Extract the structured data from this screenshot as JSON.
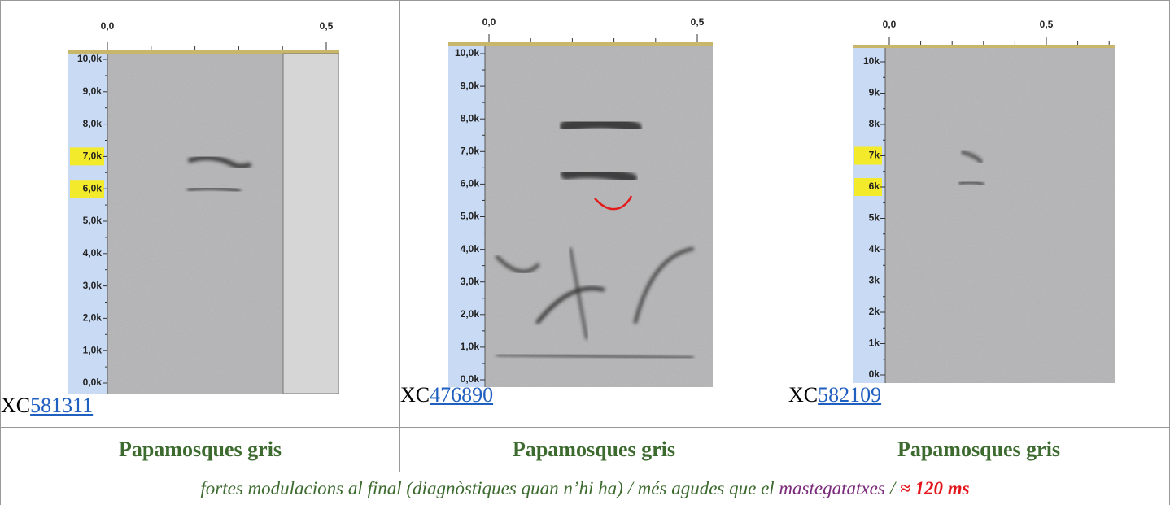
{
  "cells": [
    {
      "time_ticks": [
        "0,0",
        "0,5"
      ],
      "freq_ticks": [
        "10,0k",
        "9,0k",
        "8,0k",
        "7,0k",
        "6,0k",
        "5,0k",
        "4,0k",
        "3,0k",
        "2,0k",
        "1,0k",
        "0,0k"
      ],
      "prefix": "XC",
      "link": "581311",
      "species": "Papamosques gris"
    },
    {
      "time_ticks": [
        "0,0",
        "0,5"
      ],
      "freq_ticks": [
        "10,0k",
        "9,0k",
        "8,0k",
        "7,0k",
        "6,0k",
        "5,0k",
        "4,0k",
        "3,0k",
        "2,0k",
        "1,0k",
        "0,0k"
      ],
      "prefix": "XC",
      "link": "476890",
      "species": "Papamosques gris"
    },
    {
      "time_ticks": [
        "0,0",
        "0,5"
      ],
      "freq_ticks": [
        "10k",
        "9k",
        "8k",
        "7k",
        "6k",
        "5k",
        "4k",
        "3k",
        "2k",
        "1k",
        "0k"
      ],
      "prefix": "XC",
      "link": "582109",
      "species": "Papamosques gris"
    }
  ],
  "note": {
    "text": "fortes modulacions al final (diagnòstiques quan n’hi ha) / més agudes que el",
    "highlight": "mastegatatxes",
    "separator": "/",
    "duration": "≈ 120 ms"
  }
}
